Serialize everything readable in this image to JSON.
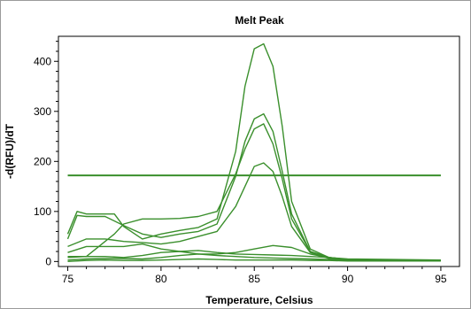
{
  "chart_data": {
    "type": "line",
    "title": "Melt Peak",
    "xlabel": "Temperature, Celsius",
    "ylabel": "-d(RFU)/dT",
    "xlim": [
      74.5,
      96
    ],
    "ylim": [
      -10,
      450
    ],
    "x_ticks": [
      75,
      80,
      85,
      90,
      95
    ],
    "y_ticks": [
      0,
      100,
      200,
      300,
      400
    ],
    "grid": false,
    "line_color": "#3a8f2c",
    "threshold": 172,
    "series": [
      {
        "x": [
          75,
          75.5,
          76,
          77,
          77.5,
          78,
          79,
          80,
          81,
          82,
          83,
          84,
          84.5,
          85,
          85.5,
          86,
          86.5,
          87,
          88,
          89,
          90,
          91,
          95
        ],
        "y": [
          55,
          100,
          95,
          95,
          95,
          70,
          45,
          55,
          62,
          68,
          85,
          220,
          350,
          425,
          435,
          390,
          270,
          120,
          25,
          8,
          4,
          2,
          2
        ]
      },
      {
        "x": [
          75,
          75.5,
          76,
          77,
          78,
          79,
          80,
          81,
          82,
          83,
          84,
          84.5,
          85,
          85.5,
          86,
          86.5,
          87,
          88,
          89,
          90,
          91,
          95
        ],
        "y": [
          45,
          92,
          90,
          90,
          72,
          55,
          48,
          55,
          60,
          75,
          170,
          240,
          285,
          295,
          260,
          180,
          95,
          20,
          8,
          4,
          2,
          2
        ]
      },
      {
        "x": [
          75,
          76,
          77,
          77.5,
          78,
          79,
          80,
          81,
          82,
          83,
          84,
          84.5,
          85,
          85.5,
          86,
          86.5,
          87,
          88,
          89,
          90,
          95
        ],
        "y": [
          10,
          10,
          40,
          55,
          75,
          85,
          85,
          86,
          90,
          100,
          175,
          225,
          265,
          275,
          235,
          165,
          85,
          20,
          8,
          3,
          2
        ]
      },
      {
        "x": [
          75,
          76,
          77,
          78,
          79,
          80,
          81,
          82,
          83,
          84,
          84.5,
          85,
          85.5,
          86,
          86.5,
          87,
          88,
          89,
          90,
          95
        ],
        "y": [
          30,
          45,
          45,
          40,
          38,
          35,
          40,
          50,
          60,
          110,
          150,
          190,
          197,
          180,
          130,
          70,
          18,
          6,
          3,
          2
        ]
      },
      {
        "x": [
          75,
          76,
          77,
          78,
          79,
          80,
          81,
          82,
          83,
          84,
          85,
          86,
          87,
          88,
          89,
          90,
          95
        ],
        "y": [
          18,
          30,
          30,
          30,
          35,
          25,
          20,
          15,
          15,
          18,
          25,
          32,
          28,
          15,
          8,
          4,
          2
        ]
      },
      {
        "x": [
          75,
          76,
          77,
          78,
          79,
          80,
          81,
          82,
          83,
          84,
          85,
          86,
          87,
          88,
          89,
          90,
          95
        ],
        "y": [
          8,
          10,
          10,
          8,
          12,
          18,
          20,
          22,
          18,
          15,
          14,
          13,
          12,
          10,
          8,
          5,
          3
        ]
      },
      {
        "x": [
          75,
          76,
          77,
          78,
          79,
          80,
          81,
          82,
          83,
          84,
          85,
          86,
          87,
          88,
          89,
          90,
          95
        ],
        "y": [
          3,
          5,
          6,
          6,
          5,
          8,
          12,
          15,
          12,
          10,
          8,
          7,
          6,
          5,
          4,
          3,
          2
        ]
      },
      {
        "x": [
          75,
          76,
          77,
          78,
          79,
          80,
          81,
          82,
          83,
          84,
          85,
          86,
          87,
          88,
          89,
          90,
          95
        ],
        "y": [
          0,
          2,
          3,
          2,
          2,
          3,
          4,
          5,
          4,
          3,
          3,
          3,
          3,
          2,
          2,
          1,
          1
        ]
      }
    ]
  }
}
